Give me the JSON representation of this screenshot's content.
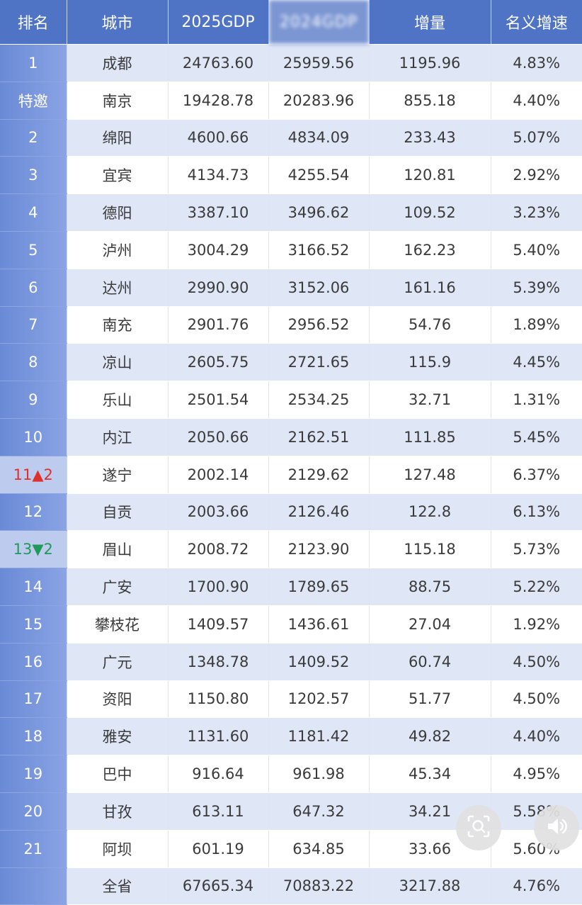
{
  "table": {
    "headers": {
      "rank": "排名",
      "city": "城市",
      "gdp2025": "2025GDP",
      "gdp_blurred": "2024GDP",
      "increase": "增量",
      "nominal_growth": "名义增速"
    },
    "rows": [
      {
        "rank": "1",
        "city": "成都",
        "gdp2025": "24763.60",
        "gdp_blurred": "25959.56",
        "increase": "1195.96",
        "growth": "4.83%"
      },
      {
        "rank": "特邀",
        "city": "南京",
        "gdp2025": "19428.78",
        "gdp_blurred": "20283.96",
        "increase": "855.18",
        "growth": "4.40%"
      },
      {
        "rank": "2",
        "city": "绵阳",
        "gdp2025": "4600.66",
        "gdp_blurred": "4834.09",
        "increase": "233.43",
        "growth": "5.07%"
      },
      {
        "rank": "3",
        "city": "宜宾",
        "gdp2025": "4134.73",
        "gdp_blurred": "4255.54",
        "increase": "120.81",
        "growth": "2.92%"
      },
      {
        "rank": "4",
        "city": "德阳",
        "gdp2025": "3387.10",
        "gdp_blurred": "3496.62",
        "increase": "109.52",
        "growth": "3.23%"
      },
      {
        "rank": "5",
        "city": "泸州",
        "gdp2025": "3004.29",
        "gdp_blurred": "3166.52",
        "increase": "162.23",
        "growth": "5.40%"
      },
      {
        "rank": "6",
        "city": "达州",
        "gdp2025": "2990.90",
        "gdp_blurred": "3152.06",
        "increase": "161.16",
        "growth": "5.39%"
      },
      {
        "rank": "7",
        "city": "南充",
        "gdp2025": "2901.76",
        "gdp_blurred": "2956.52",
        "increase": "54.76",
        "growth": "1.89%"
      },
      {
        "rank": "8",
        "city": "凉山",
        "gdp2025": "2605.75",
        "gdp_blurred": "2721.65",
        "increase": "115.9",
        "growth": "4.45%"
      },
      {
        "rank": "9",
        "city": "乐山",
        "gdp2025": "2501.54",
        "gdp_blurred": "2534.25",
        "increase": "32.71",
        "growth": "1.31%"
      },
      {
        "rank": "10",
        "city": "内江",
        "gdp2025": "2050.66",
        "gdp_blurred": "2162.51",
        "increase": "111.85",
        "growth": "5.45%"
      },
      {
        "rank": "11▲2",
        "city": "遂宁",
        "gdp2025": "2002.14",
        "gdp_blurred": "2129.62",
        "increase": "127.48",
        "growth": "6.37%"
      },
      {
        "rank": "12",
        "city": "自贡",
        "gdp2025": "2003.66",
        "gdp_blurred": "2126.46",
        "increase": "122.8",
        "growth": "6.13%"
      },
      {
        "rank": "13▼2",
        "city": "眉山",
        "gdp2025": "2008.72",
        "gdp_blurred": "2123.90",
        "increase": "115.18",
        "growth": "5.73%"
      },
      {
        "rank": "14",
        "city": "广安",
        "gdp2025": "1700.90",
        "gdp_blurred": "1789.65",
        "increase": "88.75",
        "growth": "5.22%"
      },
      {
        "rank": "15",
        "city": "攀枝花",
        "gdp2025": "1409.57",
        "gdp_blurred": "1436.61",
        "increase": "27.04",
        "growth": "1.92%"
      },
      {
        "rank": "16",
        "city": "广元",
        "gdp2025": "1348.78",
        "gdp_blurred": "1409.52",
        "increase": "60.74",
        "growth": "4.50%"
      },
      {
        "rank": "17",
        "city": "资阳",
        "gdp2025": "1150.80",
        "gdp_blurred": "1202.57",
        "increase": "51.77",
        "growth": "4.50%"
      },
      {
        "rank": "18",
        "city": "雅安",
        "gdp2025": "1131.60",
        "gdp_blurred": "1181.42",
        "increase": "49.82",
        "growth": "4.40%"
      },
      {
        "rank": "19",
        "city": "巴中",
        "gdp2025": "916.64",
        "gdp_blurred": "961.98",
        "increase": "45.34",
        "growth": "4.95%"
      },
      {
        "rank": "20",
        "city": "甘孜",
        "gdp2025": "613.11",
        "gdp_blurred": "647.32",
        "increase": "34.21",
        "growth": "5.58%"
      },
      {
        "rank": "21",
        "city": "阿坝",
        "gdp2025": "601.19",
        "gdp_blurred": "634.85",
        "increase": "33.66",
        "growth": "5.60%"
      },
      {
        "rank": "",
        "city": "全省",
        "gdp2025": "67665.34",
        "gdp_blurred": "70883.22",
        "increase": "3217.88",
        "growth": "4.76%"
      }
    ]
  },
  "overlay": {
    "lens_button_icon": "image-search-icon",
    "speaker_button_icon": "speaker-icon"
  },
  "colors": {
    "header_bg": "#4f73c5",
    "rank_col_bg": "#7b97dd",
    "stripe_bg": "#dfe7f7",
    "rank_up": "#e0302a",
    "rank_down": "#1f9a58"
  }
}
